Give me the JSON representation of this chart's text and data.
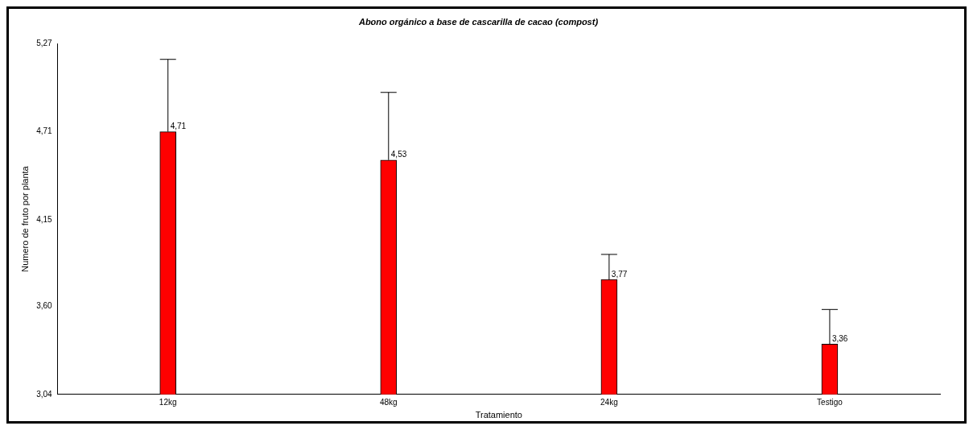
{
  "chart_data": {
    "type": "bar",
    "title": "Abono orgánico a base de cascarilla de cacao (compost)",
    "xlabel": "Tratamiento",
    "ylabel": "Numero de fruto por planta",
    "categories": [
      "12kg",
      "48kg",
      "24kg",
      "Testigo"
    ],
    "values": [
      4.71,
      4.53,
      3.77,
      3.36
    ],
    "errors": [
      [
        4.71,
        5.17
      ],
      [
        4.53,
        4.96
      ],
      [
        3.77,
        3.93
      ],
      [
        3.36,
        3.58
      ]
    ],
    "value_labels": [
      "4,71",
      "4,53",
      "3,77",
      "3,36"
    ],
    "color": "#ff0000",
    "ylim": [
      3.04,
      5.27
    ],
    "yticks": [
      {
        "value": 3.04,
        "label": "3,04"
      },
      {
        "value": 3.6,
        "label": "3,60"
      },
      {
        "value": 4.15,
        "label": "4,15"
      },
      {
        "value": 4.71,
        "label": "4,71"
      },
      {
        "value": 5.27,
        "label": "5,27"
      }
    ],
    "grid": false,
    "legend": false
  }
}
